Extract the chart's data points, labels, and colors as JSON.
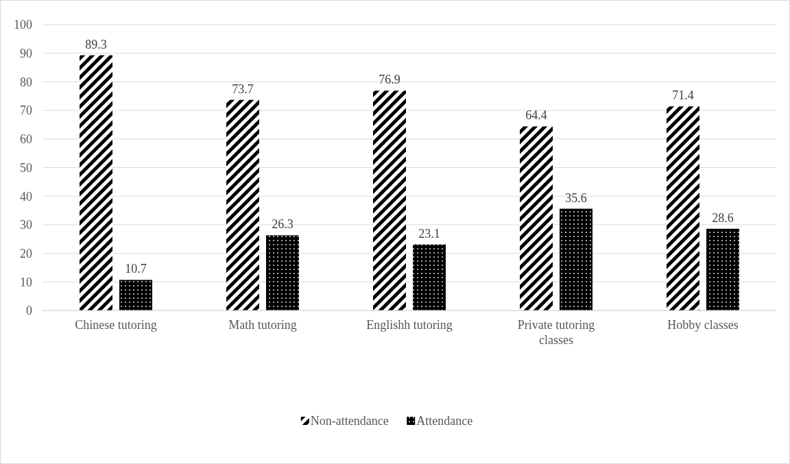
{
  "chart_data": {
    "type": "bar",
    "categories": [
      "Chinese tutoring",
      "Math tutoring",
      "Englishh tutoring",
      "Private tutoring classes",
      "Hobby classes"
    ],
    "series": [
      {
        "name": "Non-attendance",
        "color": "#000000",
        "values": [
          89.3,
          73.7,
          76.9,
          64.4,
          71.4
        ]
      },
      {
        "name": "Attendance",
        "color": "#000000",
        "values": [
          10.7,
          26.3,
          23.1,
          35.6,
          28.6
        ]
      }
    ],
    "ylim": [
      0,
      100
    ],
    "yticks": [
      0,
      10,
      20,
      30,
      40,
      50,
      60,
      70,
      80,
      90,
      100
    ],
    "grid": "y",
    "legend": "bottom",
    "data_labels": true
  }
}
